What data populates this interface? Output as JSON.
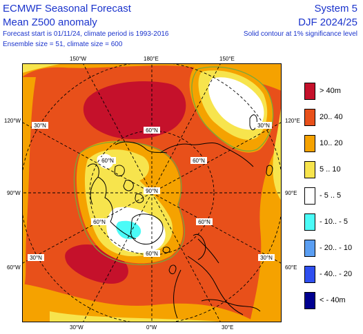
{
  "header": {
    "title": "ECMWF Seasonal Forecast",
    "subtitle": "Mean Z500 anomaly",
    "forecast_line": "Forecast start is 01/11/24, climate period is 1993-2016",
    "ensemble_line": "Ensemble size = 51, climate size = 600",
    "system": "System 5",
    "season": "DJF 2024/25",
    "significance": "Solid contour at 1% significance level"
  },
  "map": {
    "top_labels": [
      "150°W",
      "180°E",
      "150°E"
    ],
    "bottom_labels": [
      "30°W",
      "0°W",
      "30°E"
    ],
    "left_labels": [
      "120°W",
      "90°W",
      "60°W"
    ],
    "right_labels": [
      "120°E",
      "90°E",
      "60°E"
    ],
    "lat_labels": [
      "30°N",
      "30°N",
      "60°N",
      "60°N",
      "60°N",
      "60°N",
      "90°N",
      "60°N",
      "30°N",
      "30°N",
      "60°N"
    ]
  },
  "legend": [
    {
      "label": "> 40m",
      "color": "#c5112b"
    },
    {
      "label": "20.. 40",
      "color": "#e8501a"
    },
    {
      "label": "10.. 20",
      "color": "#f5a200"
    },
    {
      "label": "5 .. 10",
      "color": "#f7e44d"
    },
    {
      "label": "- 5 .. 5",
      "color": "#ffffff"
    },
    {
      "label": "- 10.. - 5",
      "color": "#4bfbf7"
    },
    {
      "label": "- 20.. - 10",
      "color": "#5a9ef2"
    },
    {
      "label": "- 40.. - 20",
      "color": "#2f4ff0"
    },
    {
      "label": "< - 40m",
      "color": "#000090"
    }
  ]
}
